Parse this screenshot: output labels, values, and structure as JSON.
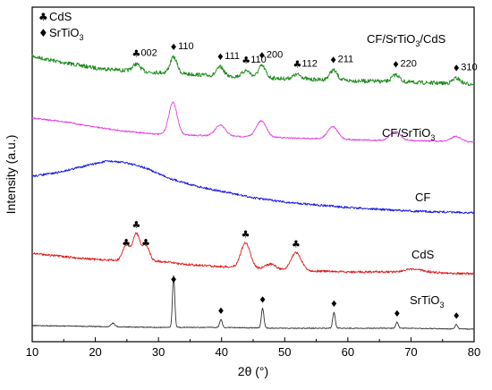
{
  "chart_data": {
    "type": "line",
    "xlabel": "2θ (°)",
    "ylabel": "Intensity (a.u.)",
    "xlim": [
      10,
      80
    ],
    "xticks": [
      "10",
      "20",
      "30",
      "40",
      "50",
      "60",
      "70",
      "80"
    ],
    "grid": false,
    "legend": {
      "placement": "top-left",
      "items": [
        {
          "symbol": "♣",
          "label": "CdS"
        },
        {
          "symbol": "♦",
          "label": "SrTiO",
          "sub": "3"
        }
      ]
    },
    "series": [
      {
        "name": "CF/SrTiO3/CdS",
        "label_main": "CF/SrTiO",
        "label_sub": "3",
        "label_tail": "/CdS",
        "color": "#1a8a1a",
        "baseline": [
          [
            10,
            63
          ],
          [
            15,
            70
          ],
          [
            20,
            76
          ],
          [
            25,
            79
          ],
          [
            30,
            81
          ],
          [
            35,
            83
          ],
          [
            40,
            85
          ],
          [
            45,
            86
          ],
          [
            50,
            88
          ],
          [
            55,
            89
          ],
          [
            60,
            90
          ],
          [
            65,
            91
          ],
          [
            70,
            92
          ],
          [
            75,
            93
          ],
          [
            80,
            94
          ]
        ],
        "peaks": [
          [
            26.5,
            8,
            0.6
          ],
          [
            32.4,
            18,
            0.55
          ],
          [
            39.8,
            10,
            0.55
          ],
          [
            43.9,
            7,
            0.6
          ],
          [
            46.4,
            13,
            0.55
          ],
          [
            52.0,
            5,
            0.7
          ],
          [
            57.7,
            11,
            0.6
          ],
          [
            67.6,
            8,
            0.6
          ],
          [
            77.2,
            6,
            0.6
          ]
        ],
        "noise": 2.2
      },
      {
        "name": "CF/SrTiO3",
        "label_main": "CF/SrTiO",
        "label_sub": "3",
        "label_tail": "",
        "color": "#e040e0",
        "baseline": [
          [
            10,
            132
          ],
          [
            15,
            136
          ],
          [
            20,
            142
          ],
          [
            25,
            147
          ],
          [
            30,
            150
          ],
          [
            35,
            151
          ],
          [
            40,
            152
          ],
          [
            45,
            153
          ],
          [
            50,
            154
          ],
          [
            55,
            155
          ],
          [
            60,
            156
          ],
          [
            65,
            157
          ],
          [
            70,
            157
          ],
          [
            75,
            158
          ],
          [
            80,
            159
          ]
        ],
        "peaks": [
          [
            32.3,
            36,
            0.65
          ],
          [
            39.8,
            12,
            0.8
          ],
          [
            46.3,
            18,
            0.8
          ],
          [
            57.6,
            14,
            0.8
          ],
          [
            67.5,
            10,
            0.8
          ],
          [
            77.1,
            6,
            0.8
          ]
        ],
        "noise": 0.8
      },
      {
        "name": "CF",
        "label_main": "CF",
        "label_sub": "",
        "label_tail": "",
        "color": "#1a1ae0",
        "baseline": [
          [
            10,
            197
          ],
          [
            14,
            193
          ],
          [
            18,
            186
          ],
          [
            22,
            180
          ],
          [
            25,
            182
          ],
          [
            28,
            188
          ],
          [
            32,
            200
          ],
          [
            36,
            208
          ],
          [
            40,
            214
          ],
          [
            45,
            221
          ],
          [
            50,
            226
          ],
          [
            55,
            229
          ],
          [
            60,
            232
          ],
          [
            65,
            234
          ],
          [
            70,
            236
          ],
          [
            75,
            237
          ],
          [
            80,
            238
          ]
        ],
        "peaks": [],
        "noise": 1.2
      },
      {
        "name": "CdS",
        "label_main": "CdS",
        "label_sub": "",
        "label_tail": "",
        "color": "#e01a1a",
        "baseline": [
          [
            10,
            283
          ],
          [
            15,
            287
          ],
          [
            20,
            290
          ],
          [
            23,
            291
          ],
          [
            30,
            292
          ],
          [
            35,
            296
          ],
          [
            40,
            298
          ],
          [
            45,
            300
          ],
          [
            50,
            302
          ],
          [
            55,
            303
          ],
          [
            60,
            304
          ],
          [
            65,
            304
          ],
          [
            70,
            304
          ],
          [
            75,
            305
          ],
          [
            80,
            306
          ]
        ],
        "peaks": [
          [
            24.9,
            18,
            0.55
          ],
          [
            26.5,
            30,
            0.55
          ],
          [
            28.0,
            18,
            0.55
          ],
          [
            43.8,
            28,
            0.75
          ],
          [
            47.8,
            6,
            0.8
          ],
          [
            51.8,
            20,
            0.8
          ],
          [
            70.5,
            3,
            1.5
          ]
        ],
        "noise": 1.2
      },
      {
        "name": "SrTiO3",
        "label_main": "SrTiO",
        "label_sub": "3",
        "label_tail": "",
        "color": "#333333",
        "baseline": [
          [
            10,
            364
          ],
          [
            20,
            365
          ],
          [
            30,
            366
          ],
          [
            40,
            366
          ],
          [
            50,
            367
          ],
          [
            60,
            367
          ],
          [
            70,
            367
          ],
          [
            80,
            368
          ]
        ],
        "peaks": [
          [
            22.8,
            4,
            0.3
          ],
          [
            32.4,
            58,
            0.18
          ],
          [
            39.9,
            9,
            0.2
          ],
          [
            46.5,
            22,
            0.2
          ],
          [
            57.8,
            18,
            0.2
          ],
          [
            67.8,
            7,
            0.2
          ],
          [
            77.2,
            5,
            0.2
          ]
        ],
        "noise": 0.5
      }
    ],
    "annotations": [
      {
        "symbol": "♣",
        "label": "002",
        "x": 26.5,
        "series": "CF/SrTiO3/CdS"
      },
      {
        "symbol": "♦",
        "label": "110",
        "x": 32.4,
        "series": "CF/SrTiO3/CdS"
      },
      {
        "symbol": "♦",
        "label": "111",
        "x": 39.8,
        "series": "CF/SrTiO3/CdS"
      },
      {
        "symbol": "♣",
        "label": "110",
        "x": 43.9,
        "series": "CF/SrTiO3/CdS"
      },
      {
        "symbol": "♦",
        "label": "200",
        "x": 46.4,
        "series": "CF/SrTiO3/CdS"
      },
      {
        "symbol": "♣",
        "label": "112",
        "x": 52.0,
        "series": "CF/SrTiO3/CdS"
      },
      {
        "symbol": "♦",
        "label": "211",
        "x": 57.7,
        "series": "CF/SrTiO3/CdS"
      },
      {
        "symbol": "♦",
        "label": "220",
        "x": 67.6,
        "series": "CF/SrTiO3/CdS"
      },
      {
        "symbol": "♦",
        "label": "310",
        "x": 77.2,
        "series": "CF/SrTiO3/CdS"
      },
      {
        "symbol": "♣",
        "label": "",
        "x": 24.9,
        "series": "CdS"
      },
      {
        "symbol": "♣",
        "label": "",
        "x": 26.5,
        "series": "CdS"
      },
      {
        "symbol": "♣",
        "label": "",
        "x": 28.0,
        "series": "CdS"
      },
      {
        "symbol": "♣",
        "label": "",
        "x": 43.8,
        "series": "CdS"
      },
      {
        "symbol": "♣",
        "label": "",
        "x": 51.8,
        "series": "CdS"
      },
      {
        "symbol": "♦",
        "label": "",
        "x": 32.4,
        "series": "SrTiO3"
      },
      {
        "symbol": "♦",
        "label": "",
        "x": 39.9,
        "series": "SrTiO3"
      },
      {
        "symbol": "♦",
        "label": "",
        "x": 46.5,
        "series": "SrTiO3"
      },
      {
        "symbol": "♦",
        "label": "",
        "x": 57.8,
        "series": "SrTiO3"
      },
      {
        "symbol": "♦",
        "label": "",
        "x": 67.8,
        "series": "SrTiO3"
      },
      {
        "symbol": "♦",
        "label": "",
        "x": 77.2,
        "series": "SrTiO3"
      }
    ]
  }
}
